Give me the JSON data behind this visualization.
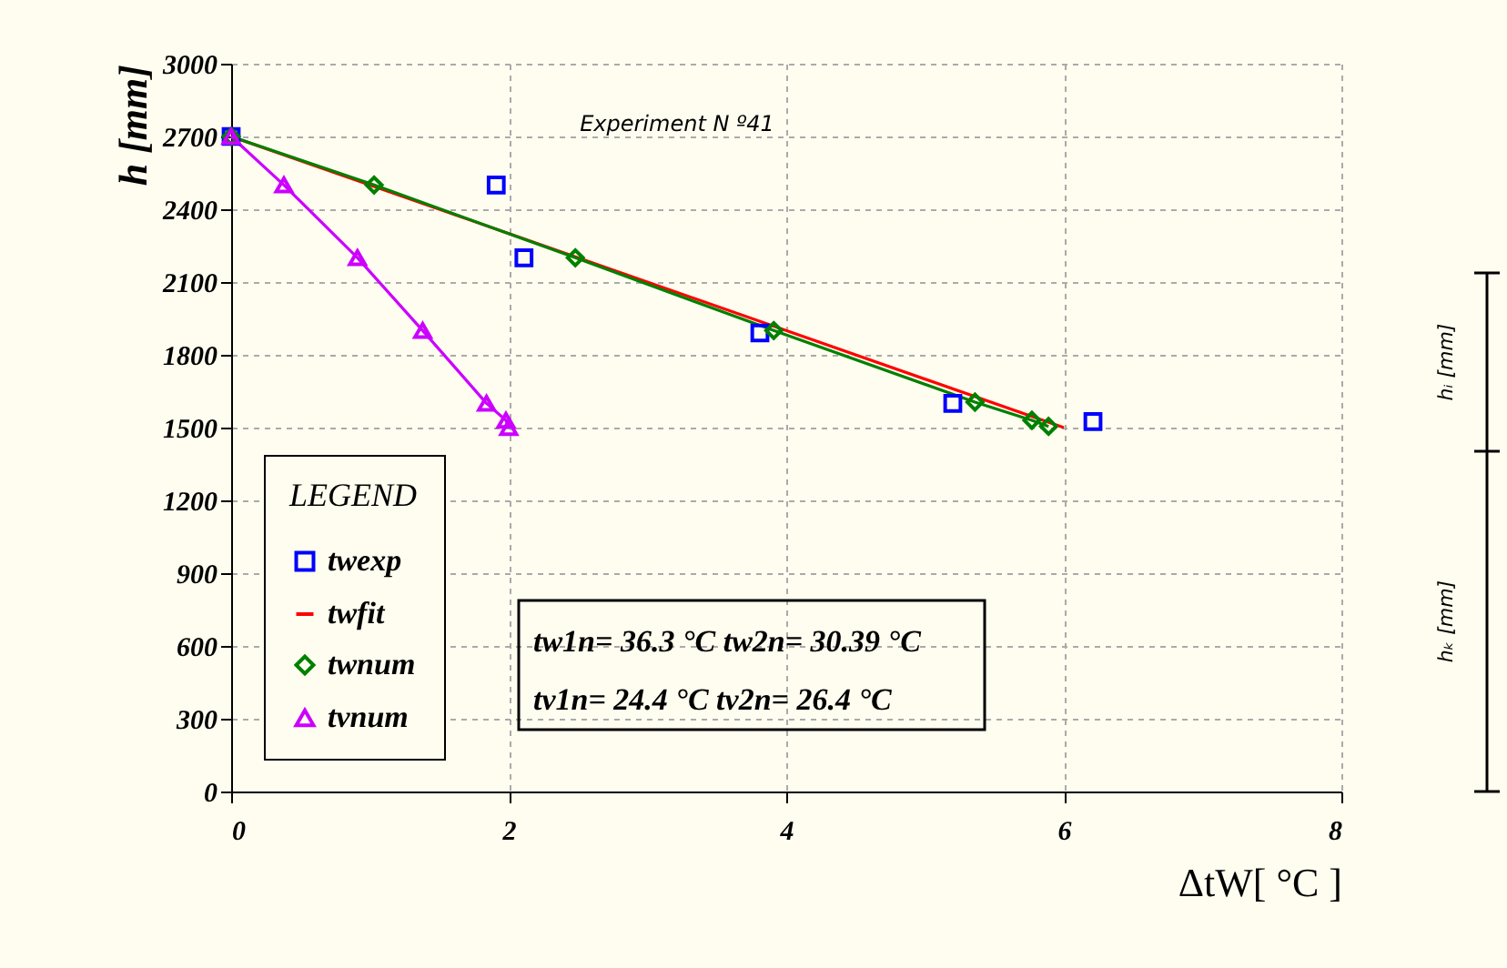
{
  "chart_data": {
    "type": "line",
    "title": "Experiment N º41",
    "xlabel": "ΔtW[ °C ]",
    "ylabel": "h [mm]",
    "legend_title": "LEGEND",
    "xlim": [
      0,
      8
    ],
    "xticks": [
      0,
      2,
      4,
      6,
      8
    ],
    "ylim": [
      0,
      3000
    ],
    "yticks": [
      0,
      300,
      600,
      900,
      1200,
      1500,
      1800,
      2100,
      2400,
      2700,
      3000
    ],
    "grid": true,
    "legend": "bottom left",
    "series": [
      {
        "name": "twexp",
        "type": "scatter",
        "marker": "square",
        "color": "#0000ff",
        "x": [
          0,
          1.91,
          2.11,
          3.81,
          5.2,
          6.21
        ],
        "values": [
          2700,
          2500,
          2200,
          1890,
          1600,
          1525
        ]
      },
      {
        "name": "twfit",
        "marker": "none",
        "color": "#ff0000",
        "x": [
          0,
          6.0
        ],
        "values": [
          2700,
          1500
        ]
      },
      {
        "name": "twnum",
        "marker": "diamond",
        "color": "#008000",
        "x": [
          0,
          1.03,
          2.48,
          3.91,
          5.36,
          5.77,
          5.89
        ],
        "values": [
          2700,
          2500,
          2200,
          1900,
          1605,
          1530,
          1505
        ]
      },
      {
        "name": "tvnum",
        "marker": "triangle",
        "color": "#cc00ff",
        "x": [
          0,
          0.38,
          0.91,
          1.38,
          1.84,
          1.98,
          2.0
        ],
        "values": [
          2700,
          2500,
          2200,
          1900,
          1600,
          1530,
          1500
        ]
      }
    ],
    "annotations": [
      "tw1n= 36.3 °C  tw2n= 30.39 °C",
      "tv1n= 24.4 °C  tv2n= 26.4 °C",
      "hᵢ [mm]",
      "hₖ [mm]"
    ]
  }
}
